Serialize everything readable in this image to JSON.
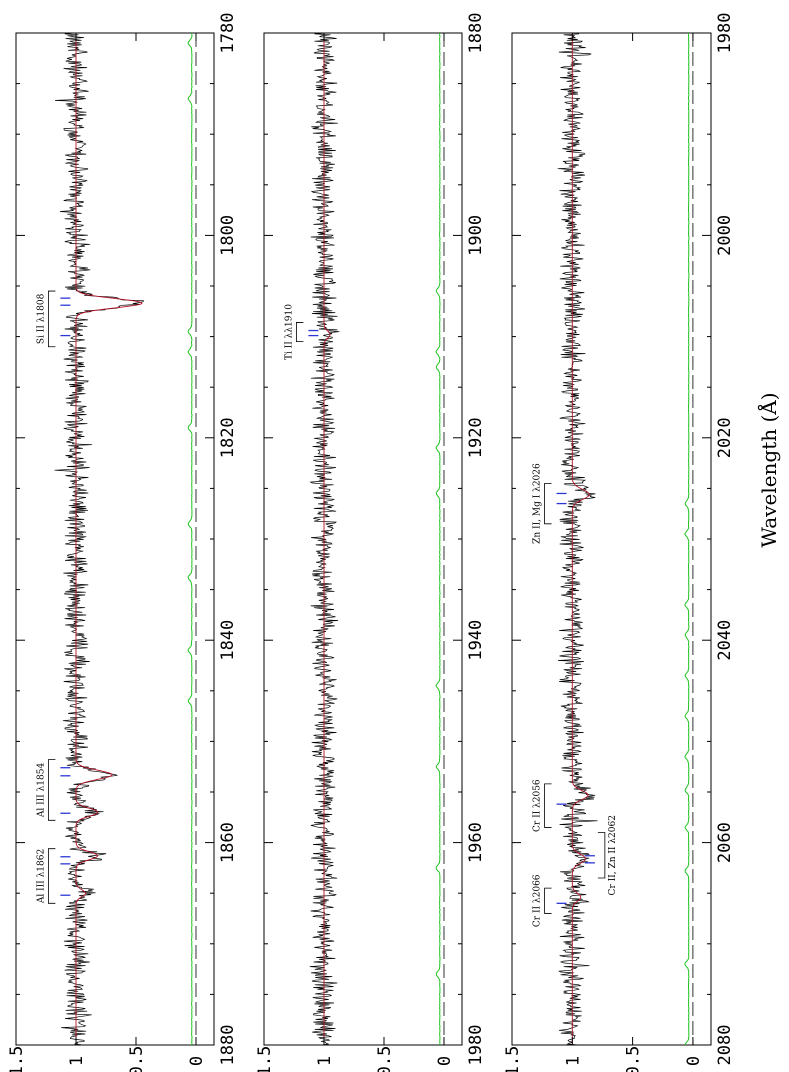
{
  "colors": {
    "spectrum": "#000000",
    "fit": "#b11226",
    "error": "#22c422",
    "ticks": "#2b37d6",
    "dashed": "#000000"
  },
  "chart_data": {
    "type": "line",
    "orientation": "rotated-90-clockwise",
    "xlabel": "Wavelength (Å)",
    "shared_y_ticks": [
      "0",
      "0.5",
      "1",
      "1.5"
    ],
    "ylim": [
      -0.15,
      1.5
    ],
    "panels": [
      {
        "name": "panel-1",
        "xlim": [
          1780,
          1880
        ],
        "x_ticks": [
          "1780",
          "1800",
          "1820",
          "1840",
          "1860",
          "1880"
        ],
        "x_major": [
          1780,
          1800,
          1820,
          1840,
          1860,
          1880
        ],
        "absorption_lines": [
          {
            "center": 1806.7,
            "depth": 0.55,
            "width": 0.45
          },
          {
            "center": 1853.3,
            "depth": 0.3,
            "width": 0.45
          },
          {
            "center": 1857.0,
            "depth": 0.18,
            "width": 0.4
          },
          {
            "center": 1861.3,
            "depth": 0.18,
            "width": 0.4
          },
          {
            "center": 1865.0,
            "depth": 0.08,
            "width": 0.35
          }
        ],
        "error_spikes": [
          1781.0,
          1786.5,
          1809.5,
          1811.5,
          1819.0,
          1828.5,
          1833.8,
          1841.0,
          1846.0
        ],
        "annotations": [
          {
            "text": "Si II λ1808",
            "bracket_x": [
              1805.5,
              1811.0
            ],
            "ticks": [
              1806.2,
              1806.9,
              1809.9
            ]
          },
          {
            "text": "Al III λ1854",
            "bracket_x": [
              1851.8,
              1857.8
            ],
            "ticks": [
              1852.6,
              1853.4,
              1857.1
            ]
          },
          {
            "text": "Al III λ1862",
            "bracket_x": [
              1860.6,
              1866.0
            ],
            "ticks": [
              1861.4,
              1862.1,
              1865.2
            ]
          }
        ]
      },
      {
        "name": "panel-2",
        "xlim": [
          1880,
          1980
        ],
        "x_ticks": [
          "1880",
          "1900",
          "1920",
          "1940",
          "1960",
          "1980"
        ],
        "x_major": [
          1880,
          1900,
          1920,
          1940,
          1960,
          1980
        ],
        "absorption_lines": [
          {
            "center": 1909.8,
            "depth": 0.05,
            "width": 0.35
          }
        ],
        "error_spikes": [
          1905.5,
          1911.5,
          1913.0,
          1921.0,
          1925.5,
          1944.5,
          1952.5,
          1962.5,
          1973.0
        ],
        "annotations": [
          {
            "text": "Ti II λλ1910",
            "bracket_x": [
              1908.6,
              1910.5
            ],
            "ticks": [
              1909.4,
              1909.9
            ]
          }
        ]
      },
      {
        "name": "panel-3",
        "xlim": [
          1980,
          2080
        ],
        "x_ticks": [
          "1980",
          "2000",
          "2020",
          "2040",
          "2060",
          "2080"
        ],
        "x_major": [
          1980,
          2000,
          2020,
          2040,
          2060,
          2080
        ],
        "absorption_lines": [
          {
            "center": 2025.6,
            "depth": 0.14,
            "width": 0.5
          },
          {
            "center": 2055.3,
            "depth": 0.13,
            "width": 0.45
          },
          {
            "center": 2061.6,
            "depth": 0.11,
            "width": 0.45
          },
          {
            "center": 2065.4,
            "depth": 0.07,
            "width": 0.4
          }
        ],
        "error_spikes": [
          2026.5,
          2029.5,
          2036.5,
          2039.5,
          2043.5,
          2047.5,
          2051.5,
          2054.8,
          2058.5,
          2062.8,
          2072.0,
          2080.0
        ],
        "annotations": [
          {
            "text": "Zn II, Mg I λ2026",
            "bracket_x": [
              2024.5,
              2028.5
            ],
            "ticks": [
              2025.5,
              2026.5
            ]
          },
          {
            "text": "Cr II λ2056",
            "bracket_x": [
              2054.2,
              2058.5
            ],
            "ticks": [
              2056.2
            ]
          },
          {
            "text": "Cr II λ2066",
            "bracket_x": [
              2064.5,
              2067.0
            ],
            "ticks": [
              2066.0
            ]
          },
          {
            "text": "Cr II, Zn II λ2062",
            "bracket_x": [
              2059.0,
              2063.5
            ],
            "ticks": [
              2061.3,
              2062.0
            ],
            "side": "right"
          }
        ]
      }
    ]
  }
}
